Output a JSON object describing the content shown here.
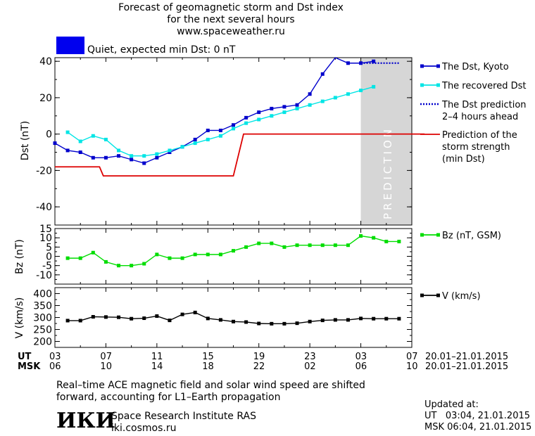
{
  "title": {
    "line1": "Forecast of geomagnetic storm and Dst index",
    "line2": "for the next several hours",
    "line3": "www.spaceweather.ru"
  },
  "status": {
    "text": "Quiet, expected min Dst: 0 nT",
    "color": "#0000ee"
  },
  "chart_data": [
    {
      "type": "line",
      "ylabel": "Dst (nT)",
      "ylim": [
        -50,
        42
      ],
      "yticks": [
        40,
        20,
        0,
        -20,
        -40
      ],
      "prediction_label": "PREDICTION",
      "x_unit": "hours (UT, from 03 UT 20.01.2015)",
      "series": [
        {
          "name": "The Dst, Kyoto",
          "color": "#0000cc",
          "marker": "square",
          "x": [
            0,
            1,
            2,
            3,
            4,
            5,
            6,
            7,
            8,
            9,
            10,
            11,
            12,
            13,
            14,
            15,
            16,
            17,
            18,
            19,
            20,
            21,
            22,
            23,
            24,
            25
          ],
          "y": [
            -5,
            -9,
            -10,
            -13,
            -13,
            -12,
            -14,
            -16,
            -13,
            -10,
            -7,
            -3,
            2,
            2,
            5,
            9,
            12,
            14,
            15,
            16,
            22,
            33,
            43,
            39,
            39,
            40
          ]
        },
        {
          "name": "The recovered Dst",
          "color": "#00e5e5",
          "marker": "square",
          "x": [
            1,
            2,
            3,
            4,
            5,
            6,
            7,
            8,
            9,
            10,
            11,
            12,
            13,
            14,
            15,
            16,
            17,
            18,
            19,
            20,
            21,
            22,
            23,
            24,
            25
          ],
          "y": [
            1,
            -4,
            -1,
            -3,
            -9,
            -12,
            -12,
            -11,
            -9,
            -7,
            -5,
            -3,
            -1,
            3,
            6,
            8,
            10,
            12,
            14,
            16,
            18,
            20,
            22,
            24,
            26
          ]
        },
        {
          "name": "The Dst prediction\n2–4 hours ahead",
          "color": "#0000cc",
          "dash": true,
          "x": [
            24,
            25,
            26,
            27
          ],
          "y": [
            39,
            39,
            39,
            39
          ]
        },
        {
          "name": "Prediction of the\nstorm strength\n(min Dst)",
          "color": "#dd0000",
          "step": true,
          "x": [
            0,
            3.5,
            3.8,
            14,
            14.8,
            29
          ],
          "y": [
            -18,
            -18,
            -23,
            -23,
            0,
            0
          ]
        }
      ]
    },
    {
      "type": "line",
      "ylabel": "Bz (nT)",
      "ylim": [
        -15,
        15
      ],
      "yticks": [
        15,
        10,
        5,
        0,
        -5,
        -10
      ],
      "series": [
        {
          "name": "Bz (nT, GSM)",
          "color": "#00dd00",
          "marker": "square",
          "x": [
            1,
            2,
            3,
            4,
            5,
            6,
            7,
            8,
            9,
            10,
            11,
            12,
            13,
            14,
            15,
            16,
            17,
            18,
            19,
            20,
            21,
            22,
            23,
            24,
            25,
            26,
            27
          ],
          "y": [
            -1,
            -1,
            2,
            -3,
            -5,
            -5,
            -4,
            1,
            -1,
            -1,
            1,
            1,
            1,
            3,
            5,
            7,
            7,
            5,
            6,
            6,
            6,
            6,
            6,
            11,
            10,
            8,
            8
          ]
        }
      ]
    },
    {
      "type": "line",
      "ylabel": "V (km/s)",
      "ylim": [
        175,
        425
      ],
      "yticks": [
        400,
        350,
        300,
        250,
        200
      ],
      "series": [
        {
          "name": "V (km/s)",
          "color": "#000000",
          "marker": "square",
          "x": [
            1,
            2,
            3,
            4,
            5,
            6,
            7,
            8,
            9,
            10,
            11,
            12,
            13,
            14,
            15,
            16,
            17,
            18,
            19,
            20,
            21,
            22,
            23,
            24,
            25,
            26,
            27
          ],
          "y": [
            287,
            287,
            303,
            302,
            301,
            295,
            297,
            306,
            288,
            313,
            321,
            296,
            290,
            283,
            281,
            275,
            274,
            274,
            276,
            283,
            288,
            290,
            290,
            296,
            295,
            295,
            295
          ]
        }
      ]
    }
  ],
  "axis": {
    "ut_label": "UT",
    "msk_label": "MSK",
    "ut_ticks": [
      "03",
      "07",
      "11",
      "15",
      "19",
      "23",
      "03",
      "07"
    ],
    "msk_ticks": [
      "06",
      "10",
      "14",
      "18",
      "22",
      "02",
      "06",
      "10"
    ],
    "date_range_ut": "20.01–21.01.2015",
    "date_range_msk": "20.01–21.01.2015"
  },
  "footer": {
    "note_line1": "Real–time ACE magnetic field and solar wind speed are shifted",
    "note_line2": "forward, accounting for L1–Earth propagation",
    "logo": "ИКИ",
    "institute": "Space Research Institute RAS",
    "site": "iki.cosmos.ru",
    "updated_label": "Updated at:",
    "updated_ut": "UT   03:04, 21.01.2015",
    "updated_msk": "MSK 06:04, 21.01.2015"
  }
}
